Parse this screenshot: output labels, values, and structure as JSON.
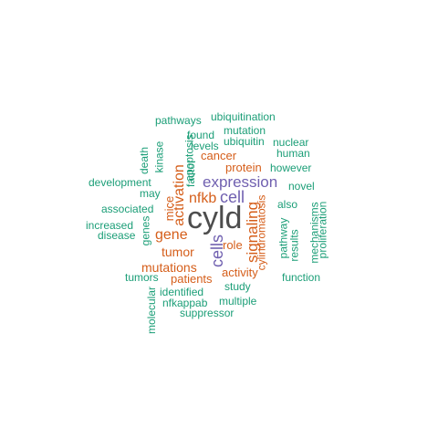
{
  "colors": {
    "tier_a": "#4d4d4d",
    "tier_b": "#7060b0",
    "tier_c": "#d55e1a",
    "tier_d": "#1b9e77"
  },
  "words": [
    {
      "id": "cyld",
      "text": "cyld"
    },
    {
      "id": "expression",
      "text": "expression"
    },
    {
      "id": "cell",
      "text": "cell"
    },
    {
      "id": "cells",
      "text": "cells"
    },
    {
      "id": "signaling",
      "text": "signaling"
    },
    {
      "id": "activation",
      "text": "activation"
    },
    {
      "id": "nfkb",
      "text": "nfkb"
    },
    {
      "id": "gene",
      "text": "gene"
    },
    {
      "id": "tumor",
      "text": "tumor"
    },
    {
      "id": "mutations",
      "text": "mutations"
    },
    {
      "id": "patients",
      "text": "patients"
    },
    {
      "id": "activity",
      "text": "activity"
    },
    {
      "id": "cancer",
      "text": "cancer"
    },
    {
      "id": "protein",
      "text": "protein"
    },
    {
      "id": "mice",
      "text": "mice"
    },
    {
      "id": "role",
      "text": "role"
    },
    {
      "id": "cylindromatosis",
      "text": "cylindromatosis"
    },
    {
      "id": "pathways",
      "text": "pathways"
    },
    {
      "id": "ubiquitination",
      "text": "ubiquitination"
    },
    {
      "id": "mutation",
      "text": "mutation"
    },
    {
      "id": "found",
      "text": "found"
    },
    {
      "id": "ubiquitin",
      "text": "ubiquitin"
    },
    {
      "id": "nuclear",
      "text": "nuclear"
    },
    {
      "id": "levels",
      "text": "levels"
    },
    {
      "id": "human",
      "text": "human"
    },
    {
      "id": "however",
      "text": "however"
    },
    {
      "id": "apoptosis",
      "text": "apoptosis"
    },
    {
      "id": "kinase",
      "text": "kinase"
    },
    {
      "id": "death",
      "text": "death"
    },
    {
      "id": "factor",
      "text": "factor"
    },
    {
      "id": "development",
      "text": "development"
    },
    {
      "id": "may",
      "text": "may"
    },
    {
      "id": "novel",
      "text": "novel"
    },
    {
      "id": "also",
      "text": "also"
    },
    {
      "id": "associated",
      "text": "associated"
    },
    {
      "id": "increased",
      "text": "increased"
    },
    {
      "id": "disease",
      "text": "disease"
    },
    {
      "id": "genes",
      "text": "genes"
    },
    {
      "id": "pathway",
      "text": "pathway"
    },
    {
      "id": "results",
      "text": "results"
    },
    {
      "id": "mechanisms",
      "text": "mechanisms"
    },
    {
      "id": "proliferation",
      "text": "proliferation"
    },
    {
      "id": "tumors",
      "text": "tumors"
    },
    {
      "id": "function",
      "text": "function"
    },
    {
      "id": "study",
      "text": "study"
    },
    {
      "id": "identified",
      "text": "identified"
    },
    {
      "id": "molecular",
      "text": "molecular"
    },
    {
      "id": "nfkappab",
      "text": "nfkappab"
    },
    {
      "id": "multiple",
      "text": "multiple"
    },
    {
      "id": "suppressor",
      "text": "suppressor"
    }
  ]
}
